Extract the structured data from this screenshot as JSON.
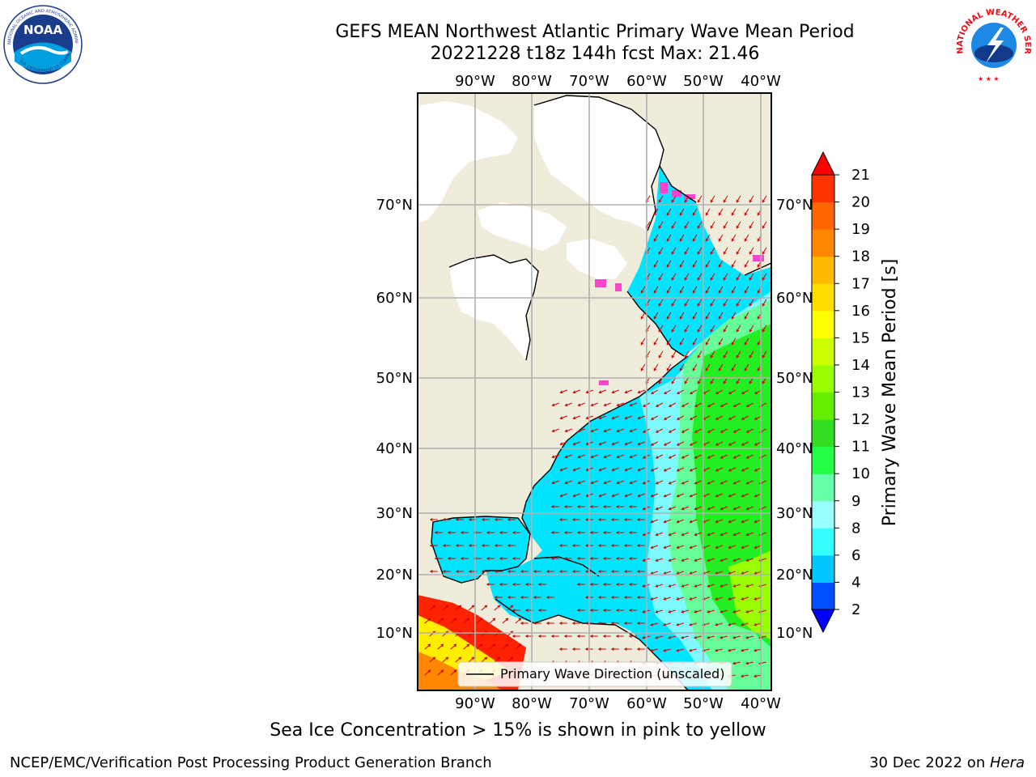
{
  "title": {
    "line1": "GEFS MEAN Northwest Atlantic Primary Wave Mean Period",
    "line2": "20221228 t18z 144h fcst   Max: 21.46"
  },
  "logos": {
    "noaa_text": "NOAA",
    "noaa_ring_top": "NATIONAL OCEANIC AND ATMOSPHERIC ADMINISTRATION",
    "noaa_ring_bottom": "U.S. DEPARTMENT OF COMMERCE",
    "nws_ring": "NATIONAL WEATHER SERVICE"
  },
  "map": {
    "lon_labels": [
      "90°W",
      "80°W",
      "70°W",
      "60°W",
      "50°W",
      "40°W"
    ],
    "lat_labels": [
      "70°N",
      "60°N",
      "50°N",
      "40°N",
      "30°N",
      "20°N",
      "10°N"
    ],
    "legend": "Primary Wave Direction (unscaled)",
    "land_color": "#efecdc",
    "ocean_colors": {
      "cyan": "#00e5ff",
      "light_cyan": "#7ffbff",
      "light_green": "#66ff99",
      "green": "#22ee22",
      "yellow_green": "#99ff00",
      "red": "#ff2200",
      "orange": "#ff8800",
      "yellow": "#ffee00"
    },
    "arrow_color": "#cc0000"
  },
  "colorbar": {
    "title": "Primary Wave Mean Period [s]",
    "ticks": [
      "21",
      "20",
      "19",
      "18",
      "17",
      "16",
      "15",
      "14",
      "13",
      "12",
      "11",
      "10",
      "9",
      "8",
      "6",
      "4",
      "2"
    ],
    "levels": [
      2,
      4,
      6,
      8,
      9,
      10,
      11,
      12,
      13,
      14,
      15,
      16,
      17,
      18,
      19,
      20,
      21
    ],
    "colors": [
      "#0050ff",
      "#00c8ff",
      "#33ffff",
      "#99ffff",
      "#66ffaa",
      "#22ff44",
      "#33dd22",
      "#66ee00",
      "#99ff00",
      "#ccff00",
      "#ffff00",
      "#ffdd00",
      "#ffbb00",
      "#ff8800",
      "#ff6600",
      "#ff3300",
      "#ff1100"
    ],
    "under_color": "#0000ff",
    "over_color": "#ff0000"
  },
  "footer": {
    "note": "Sea Ice Concentration > 15% is shown in pink to yellow",
    "left": "NCEP/EMC/Verification Post Processing Product Generation Branch",
    "right_date": "30 Dec 2022 on ",
    "right_host": "Hera"
  }
}
